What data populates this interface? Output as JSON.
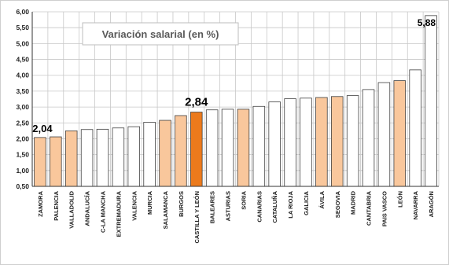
{
  "chart_data": {
    "type": "bar",
    "title": "Variación salarial (en %)",
    "xlabel": "",
    "ylabel": "",
    "ylim": [
      0.5,
      6.0
    ],
    "ytick_step": 0.5,
    "yticks": [
      "0,50",
      "1,00",
      "1,50",
      "2,00",
      "2,50",
      "3,00",
      "3,50",
      "4,00",
      "4,50",
      "5,00",
      "5,50",
      "6,00"
    ],
    "grid": true,
    "legend": "none",
    "categories": [
      "ZAMORA",
      "PALENCIA",
      "VALLADOLID",
      "ANDALUCÍA",
      "C-LA MANCHA",
      "EXTREMADURA",
      "VALENCIA",
      "MURCIA",
      "SALAMANCA",
      "BURGOS",
      "CASTILLA Y LEÓN",
      "BALEARES",
      "ASTURIAS",
      "SORIA",
      "CANARIAS",
      "CATALUÑA",
      "LA RIOJA",
      "GALICIA",
      "ÁVILA",
      "SEGOVIA",
      "MADRID",
      "CANTABRIA",
      "PAIS VASCO",
      "LEÓN",
      "NAVARRA",
      "ARAGÓN"
    ],
    "values": [
      2.04,
      2.06,
      2.25,
      2.29,
      2.3,
      2.34,
      2.38,
      2.52,
      2.58,
      2.73,
      2.84,
      2.91,
      2.93,
      2.93,
      3.02,
      3.16,
      3.26,
      3.28,
      3.3,
      3.33,
      3.36,
      3.55,
      3.77,
      3.83,
      4.17,
      5.88
    ],
    "highlight": [
      "ZAMORA",
      "PALENCIA",
      "VALLADOLID",
      "SALAMANCA",
      "BURGOS",
      "SORIA",
      "ÁVILA",
      "SEGOVIA",
      "LEÓN"
    ],
    "emphasis": "CASTILLA Y LEÓN",
    "data_labels": [
      {
        "category": "ZAMORA",
        "text": "2,04"
      },
      {
        "category": "CASTILLA Y LEÓN",
        "text": "2,84"
      },
      {
        "category": "ARAGÓN",
        "text": "5,88"
      }
    ],
    "colors": {
      "default_bar": "#ffffff",
      "highlight_bar": "#f9c79c",
      "emphasis_bar": "#ec7a1c",
      "bar_stroke": "#404040",
      "grid": "#c8c8c8",
      "axis": "#333333"
    }
  }
}
